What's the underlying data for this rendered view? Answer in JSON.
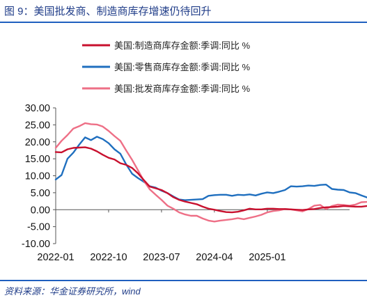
{
  "header": {
    "title": "图 9：美国批发商、制造商库存增速仍待回升"
  },
  "footer": {
    "source": "资料来源：华金证券研究所，wind"
  },
  "chart_data": {
    "type": "line",
    "title": "",
    "xlabel": "",
    "ylabel": "",
    "ylim": [
      -10,
      30
    ],
    "yticks": [
      "30.00",
      "25.00",
      "20.00",
      "15.00",
      "10.00",
      "5.00",
      "0.00",
      "-5.00",
      "-10.00"
    ],
    "xticks": [
      "2022-01",
      "2022-10",
      "2023-07",
      "2024-04",
      "2025-01"
    ],
    "x_start": "2022-01",
    "legend_position": "top",
    "grid": false,
    "series": [
      {
        "name": "美国:制造商库存金额:季调:同比 %",
        "color": "#c8102e",
        "values": [
          17.0,
          16.9,
          17.8,
          18.2,
          18.3,
          18.4,
          18.0,
          17.2,
          16.2,
          15.3,
          14.8,
          13.7,
          13.2,
          12.3,
          10.7,
          8.7,
          6.8,
          6.3,
          5.8,
          4.9,
          3.7,
          2.9,
          2.4,
          2.0,
          1.6,
          0.9,
          0.3,
          0.0,
          -0.4,
          -0.7,
          -0.8,
          -0.6,
          -0.2,
          0.3,
          0.1,
          0.1,
          0.3,
          0.3,
          0.2,
          0.2,
          0.1,
          0.0,
          -0.1,
          0.1,
          0.2,
          0.5,
          0.7,
          0.8,
          0.9,
          1.1,
          1.0,
          0.9,
          0.9,
          1.1,
          1.2,
          1.3,
          1.3,
          1.1,
          1.3
        ]
      },
      {
        "name": "美国:零售商库存金额:季调:同比 %",
        "color": "#1f6fbf",
        "values": [
          8.9,
          10.2,
          15.0,
          16.8,
          19.2,
          21.3,
          20.5,
          21.5,
          20.8,
          19.6,
          17.8,
          16.5,
          13.3,
          10.6,
          9.3,
          8.2,
          6.9,
          6.5,
          5.6,
          4.9,
          3.9,
          3.0,
          2.8,
          2.9,
          3.0,
          3.1,
          4.1,
          4.3,
          4.4,
          4.4,
          4.1,
          4.4,
          4.3,
          4.5,
          4.2,
          4.7,
          5.1,
          4.9,
          5.3,
          5.8,
          6.9,
          6.8,
          6.9,
          7.1,
          7.0,
          7.3,
          7.4,
          6.1,
          5.9,
          5.8,
          5.1,
          4.9,
          4.2,
          3.6,
          3.1,
          2.5,
          1.7,
          1.0,
          0.6
        ]
      },
      {
        "name": "美国:批发商库存金额:季调:同比 %",
        "color": "#ee6f86",
        "values": [
          18.2,
          20.3,
          22.0,
          23.9,
          24.6,
          25.5,
          25.2,
          25.1,
          24.5,
          23.2,
          21.7,
          20.3,
          17.4,
          14.7,
          11.6,
          8.5,
          6.0,
          4.4,
          2.9,
          1.2,
          0.3,
          -0.8,
          -1.4,
          -1.8,
          -1.8,
          -2.6,
          -3.2,
          -3.5,
          -3.2,
          -3.0,
          -2.8,
          -2.5,
          -2.8,
          -2.4,
          -2.0,
          -1.5,
          -0.8,
          -0.4,
          -0.2,
          0.2,
          0.1,
          -0.2,
          -0.5,
          0.2,
          1.2,
          1.4,
          0.2,
          1.1,
          1.5,
          1.4,
          1.2,
          1.5,
          2.2,
          2.3,
          1.9,
          1.4,
          1.1,
          1.4,
          1.8
        ]
      }
    ]
  }
}
